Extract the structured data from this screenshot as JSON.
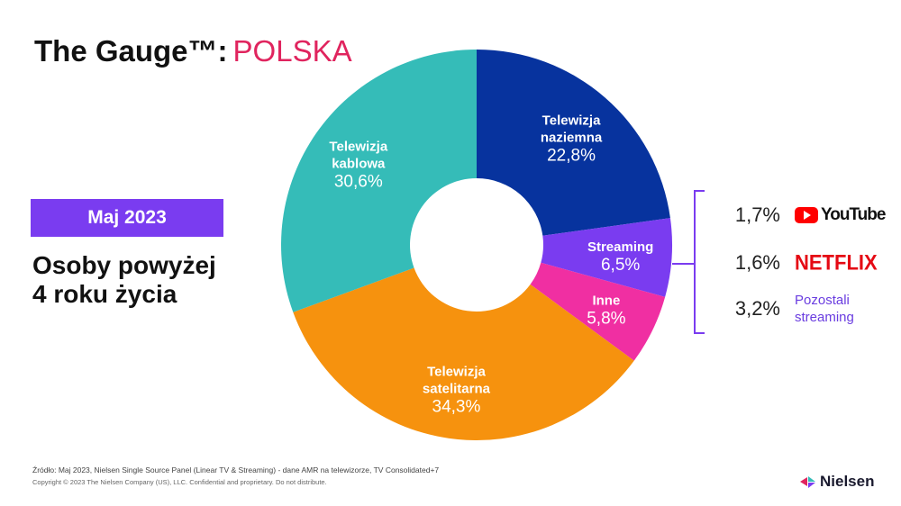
{
  "header": {
    "title": "The Gauge™:",
    "country": "POLSKA"
  },
  "period_badge": "Maj 2023",
  "audience_lines": [
    "Osoby powyżej",
    "4 roku życia"
  ],
  "chart_data": {
    "type": "pie",
    "variant": "donut",
    "categories": [
      "Telewizja naziemna",
      "Streaming",
      "Inne",
      "Telewizja satelitarna",
      "Telewizja kablowa"
    ],
    "values": [
      22.8,
      6.5,
      5.8,
      34.3,
      30.6
    ],
    "labels": [
      {
        "name": [
          "Telewizja",
          "naziemna"
        ],
        "value": "22,8%"
      },
      {
        "name": [
          "Streaming"
        ],
        "value": "6,5%"
      },
      {
        "name": [
          "Inne"
        ],
        "value": "5,8%"
      },
      {
        "name": [
          "Telewizja",
          "satelitarna"
        ],
        "value": "34,3%"
      },
      {
        "name": [
          "Telewizja",
          "kablowa"
        ],
        "value": "30,6%"
      }
    ],
    "colors": [
      "#07339e",
      "#7a3cf0",
      "#f02fa2",
      "#f6920e",
      "#35bcb8"
    ],
    "start_angle_deg": 0,
    "direction": "clockwise"
  },
  "streaming_breakdown": [
    {
      "pct": "1,7%",
      "brand": "YouTube",
      "icon": "youtube-logo"
    },
    {
      "pct": "1,6%",
      "brand": "NETFLIX",
      "icon": "netflix-logo"
    },
    {
      "pct": "3,2%",
      "brand_lines": [
        "Pozostali",
        "streaming"
      ]
    }
  ],
  "footer": {
    "source": "Źródło: Maj 2023, Nielsen Single Source Panel (Linear TV & Streaming) - dane AMR na telewizorze, TV Consolidated+7",
    "copyright": "Copyright © 2023 The Nielsen Company (US), LLC. Confidential and proprietary. Do not distribute.",
    "logo": "Nielsen"
  },
  "colors": {
    "accent_purple": "#7a3cf0",
    "title_pink": "#e0245e",
    "netflix_red": "#e50914",
    "youtube_red": "#ff0000"
  }
}
